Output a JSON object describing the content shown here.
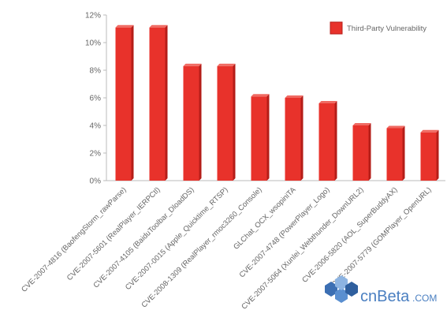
{
  "chart_data": {
    "type": "bar",
    "categories": [
      "CVE-2007-4816 (BaofengStorm_rawParse)",
      "CVE-2007-5601 (RealPlayer_IERPCtl)",
      "CVE-2007-4105 (BaiduToolbar_DloadDS)",
      "CVE-2007-0015 (Apple_Quicktime_RTSP)",
      "CVE-2008-1309 (RealPlayer_rmoc3260_Console)",
      "GLChat_OCX_wsopiniTA",
      "CVE-2007-4748 (PowerPlayer_Logo)",
      "CVE-2007-5064 (Xunlei_Webthunder_DownURL2)",
      "CVE-2006-5820 (AOL_SuperBuddyAX)",
      "CVE-2007-5779 (GOMPlayer_OpenURL)"
    ],
    "series": [
      {
        "name": "Third-Party Vulnerability",
        "values": [
          11.1,
          11.1,
          8.3,
          8.3,
          6.1,
          6.0,
          5.6,
          4.0,
          3.8,
          3.5
        ]
      }
    ],
    "yticks": [
      "0%",
      "2%",
      "4%",
      "6%",
      "8%",
      "10%",
      "12%"
    ],
    "ylim": [
      0,
      12
    ],
    "grid": false,
    "legend_position": "top-right",
    "colors": {
      "bar_face": "#e8322b",
      "bar_side": "#b51d18",
      "bar_top": "#f06a62",
      "axis": "#bbbbbb"
    }
  },
  "watermark": {
    "brand": "cnBeta",
    "suffix": ".COM"
  }
}
